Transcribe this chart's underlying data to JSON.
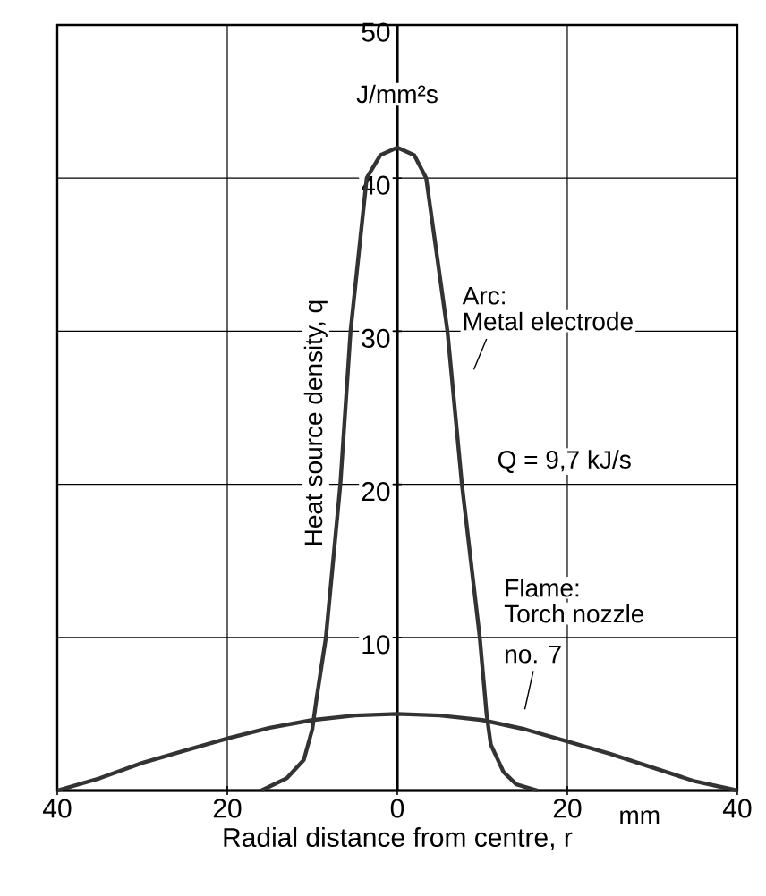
{
  "chart_data": {
    "type": "line",
    "xlabel": "Radial distance from centre, r",
    "ylabel": "Heat source density, q",
    "xlim": [
      -40,
      40
    ],
    "ylim": [
      0,
      50
    ],
    "xticks": [
      {
        "value": -40,
        "label": "40"
      },
      {
        "value": -20,
        "label": "20"
      },
      0,
      20,
      40
    ],
    "yticks": [
      10,
      20,
      30,
      40,
      50
    ],
    "grid": true,
    "marker": "none",
    "line_style": "solid",
    "series": [
      {
        "color": "#333333",
        "x": [
          -16,
          -13,
          -11,
          -10,
          -9.5,
          -8.4,
          -6.7,
          -5.5,
          -3.6,
          -2,
          0,
          2,
          3.4,
          5.9,
          7.6,
          9.7,
          10.5,
          11,
          12.5,
          14,
          16.5
        ],
        "values": [
          0,
          0.8,
          2,
          4,
          6,
          10,
          20,
          30,
          40,
          41.5,
          42,
          41.5,
          40,
          30,
          20,
          10,
          5,
          3,
          1.2,
          0.4,
          0
        ]
      },
      {
        "color": "#333333",
        "x": [
          -40,
          -35,
          -30,
          -25,
          -20,
          -15,
          -10,
          -5,
          0,
          5,
          10,
          15,
          20,
          25,
          30,
          35,
          40
        ],
        "values": [
          0,
          0.8,
          1.8,
          2.6,
          3.4,
          4.1,
          4.6,
          4.9,
          5,
          4.9,
          4.6,
          4,
          3.2,
          2.4,
          1.5,
          0.6,
          0
        ]
      }
    ],
    "annotations": [
      "J/mm²s",
      "mm",
      "Arc:",
      "Metal electrode",
      "Q = 9,7 kJ/s",
      "Flame:",
      "Torch nozzle",
      "no. 7"
    ]
  }
}
